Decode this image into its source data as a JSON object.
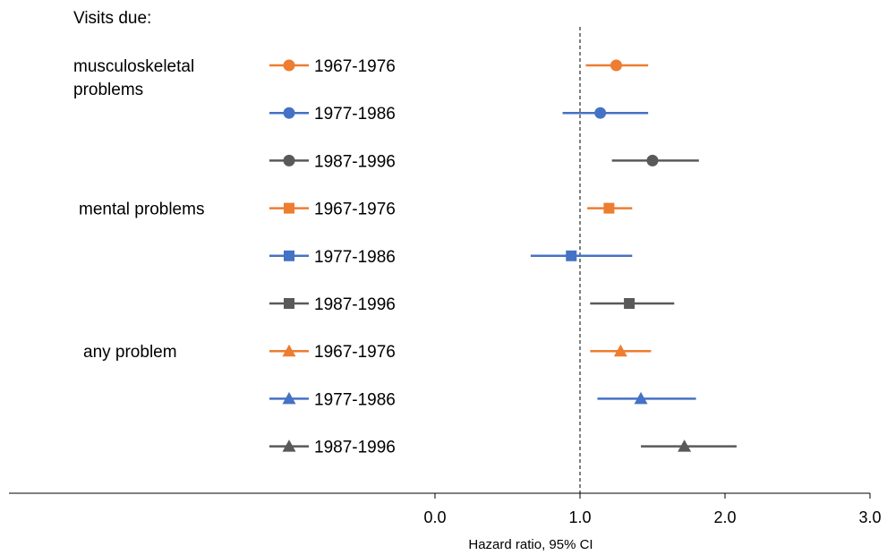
{
  "chart_data": {
    "type": "scatter",
    "subtype": "forest-plot",
    "title": "Visits due:",
    "xlabel": "Hazard ratio, 95% CI",
    "xlim": [
      0,
      3
    ],
    "xticks": [
      0,
      1,
      2,
      3
    ],
    "xtick_labels": [
      "0.0",
      "1.0",
      "2.0",
      "3.0"
    ],
    "reference_line": 1.0,
    "reference_line_style": "dashed",
    "grid": false,
    "colors": {
      "1967-1976": "#ED7D31",
      "1977-1986": "#4472C4",
      "1987-1996": "#595959"
    },
    "groups": [
      {
        "label_lines": [
          "musculoskeletal",
          "problems"
        ],
        "marker": "circle",
        "rows": [
          {
            "cohort": "1967-1976",
            "estimate": 1.25,
            "ci_low": 1.04,
            "ci_high": 1.47
          },
          {
            "cohort": "1977-1986",
            "estimate": 1.14,
            "ci_low": 0.88,
            "ci_high": 1.47
          },
          {
            "cohort": "1987-1996",
            "estimate": 1.5,
            "ci_low": 1.22,
            "ci_high": 1.82
          }
        ]
      },
      {
        "label_lines": [
          "mental problems"
        ],
        "marker": "square",
        "rows": [
          {
            "cohort": "1967-1976",
            "estimate": 1.2,
            "ci_low": 1.05,
            "ci_high": 1.36
          },
          {
            "cohort": "1977-1986",
            "estimate": 0.94,
            "ci_low": 0.66,
            "ci_high": 1.36
          },
          {
            "cohort": "1987-1996",
            "estimate": 1.34,
            "ci_low": 1.07,
            "ci_high": 1.65
          }
        ]
      },
      {
        "label_lines": [
          "any problem"
        ],
        "marker": "triangle",
        "rows": [
          {
            "cohort": "1967-1976",
            "estimate": 1.28,
            "ci_low": 1.07,
            "ci_high": 1.49
          },
          {
            "cohort": "1977-1986",
            "estimate": 1.42,
            "ci_low": 1.12,
            "ci_high": 1.8
          },
          {
            "cohort": "1987-1996",
            "estimate": 1.72,
            "ci_low": 1.42,
            "ci_high": 2.08
          }
        ]
      }
    ]
  }
}
